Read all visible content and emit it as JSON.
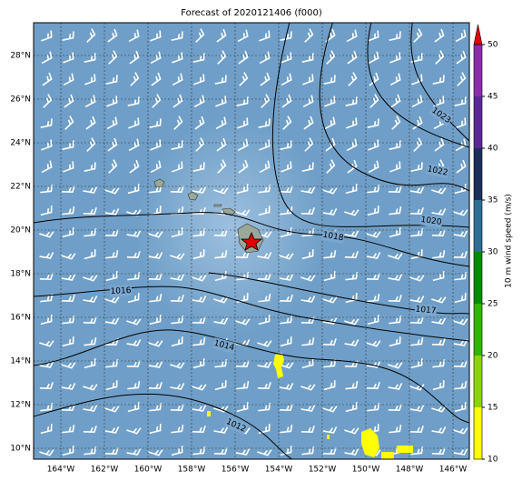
{
  "title": "Forecast of 2020121406 (f000)",
  "longitude_labels": [
    "164°W",
    "162°W",
    "160°W",
    "158°W",
    "156°W",
    "154°W",
    "152°W",
    "150°W",
    "148°W",
    "146°W"
  ],
  "latitude_labels": [
    "28°N",
    "26°N",
    "24°N",
    "22°N",
    "20°N",
    "18°N",
    "16°N",
    "14°N",
    "12°N",
    "10°N"
  ],
  "isobar_labels": [
    "1012",
    "1014",
    "1016",
    "1017",
    "1018",
    "1020",
    "1022",
    "1023"
  ],
  "colorbar": {
    "label": "10 m wind speed (m/s)",
    "lim": [
      10,
      50
    ],
    "ticks": [
      10,
      15,
      20,
      25,
      30,
      35,
      40,
      45,
      50
    ],
    "colors": [
      "#ffff00",
      "#8cd400",
      "#32b400",
      "#008c00",
      "#2e6e96",
      "#1e2e5a",
      "#5a2896",
      "#8c2da8"
    ],
    "extend_color": "#e00000"
  }
}
